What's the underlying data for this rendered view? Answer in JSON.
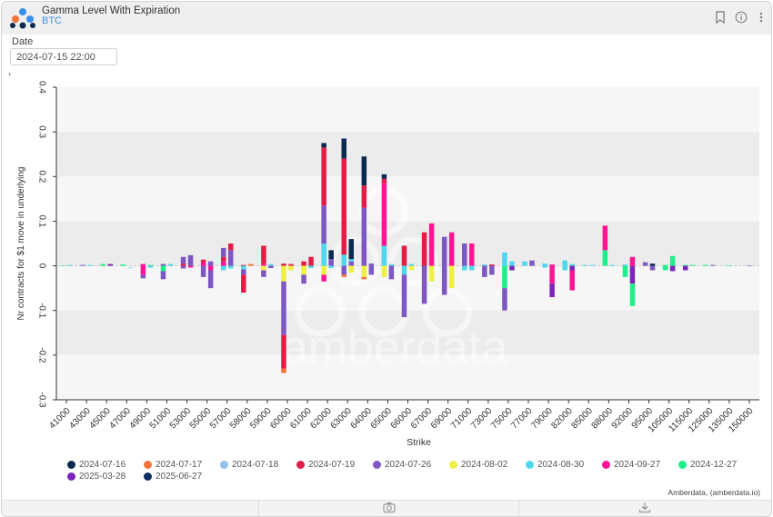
{
  "header": {
    "title": "Gamma Level With Expiration",
    "subtitle": "BTC",
    "icons": [
      "bookmark-icon",
      "info-icon",
      "more-vertical-icon"
    ]
  },
  "filters": {
    "date_label": "Date",
    "date_value": "2024-07-15 22:00"
  },
  "watermark": "amberdata",
  "credit": "Amberdata, (amberdata.io)",
  "footer": {
    "icons": [
      "camera-icon",
      "download-icon"
    ]
  },
  "colors": {
    "2024-07-16": "#0b2a4f",
    "2024-07-17": "#f4733a",
    "2024-07-18": "#8fc2ee",
    "2024-07-19": "#e11d48",
    "2024-07-26": "#7e57c2",
    "2024-08-02": "#eef042",
    "2024-08-30": "#4fd7ee",
    "2024-09-27": "#ff1493",
    "2024-12-27": "#1df08a",
    "2025-03-28": "#7b25b8",
    "2025-06-27": "#0a2e63"
  },
  "chart_data": {
    "type": "bar",
    "stacked": true,
    "xlabel": "Strike",
    "ylabel": "Nr contracts for $1 move in underlying",
    "ylim": [
      -0.3,
      0.4
    ],
    "yticks": [
      0.4,
      0.3,
      0.2,
      0.1,
      0,
      -0.1,
      -0.2,
      -0.3
    ],
    "ytick_labels": [
      "0.4",
      "0.3",
      "0.2",
      "0.1",
      "0",
      "-0.1",
      "-0.2",
      "-0.3"
    ],
    "grid": true,
    "legend_position": "bottom",
    "categories": [
      "41000",
      "43000",
      "45000",
      "47000",
      "49000",
      "51000",
      "53000",
      "55000",
      "57000",
      "58000",
      "59000",
      "60000",
      "61000",
      "62000",
      "63000",
      "64000",
      "65000",
      "66000",
      "67000",
      "69000",
      "71000",
      "73000",
      "75000",
      "77000",
      "79000",
      "82000",
      "85000",
      "88000",
      "92000",
      "95000",
      "105000",
      "115000",
      "125000",
      "135000",
      "150000"
    ],
    "series_names": [
      "2024-07-16",
      "2024-07-17",
      "2024-07-18",
      "2024-07-19",
      "2024-07-26",
      "2024-08-02",
      "2024-08-30",
      "2024-09-27",
      "2024-12-27",
      "2025-03-28",
      "2025-06-27"
    ],
    "bars": [
      {
        "x": "41000",
        "seg": [
          [
            "2024-12-27",
            0.001
          ]
        ]
      },
      {
        "x": "41000",
        "seg": [
          [
            "2024-08-30",
            0.002
          ]
        ]
      },
      {
        "x": "43000",
        "seg": [
          [
            "2024-07-26",
            0.002
          ]
        ]
      },
      {
        "x": "43000",
        "seg": [
          [
            "2024-08-30",
            0.002
          ]
        ]
      },
      {
        "x": "45000",
        "seg": [
          [
            "2024-12-27",
            0.004
          ]
        ]
      },
      {
        "x": "45000",
        "seg": [
          [
            "2025-03-28",
            0.004
          ]
        ]
      },
      {
        "x": "47000",
        "seg": [
          [
            "2024-12-27",
            0.003
          ]
        ]
      },
      {
        "x": "47000",
        "seg": [
          [
            "2024-08-30",
            -0.004
          ]
        ]
      },
      {
        "x": "49000",
        "seg": [
          [
            "2024-09-27",
            0.004
          ]
        ],
        "neg": [
          [
            "2024-09-27",
            -0.02
          ],
          [
            "2024-07-26",
            -0.008
          ]
        ]
      },
      {
        "x": "49000",
        "seg": [
          [
            "2024-12-27",
            0.002
          ]
        ],
        "neg": [
          [
            "2024-08-30",
            -0.004
          ]
        ]
      },
      {
        "x": "51000",
        "seg": [
          [
            "2024-07-26",
            0.004
          ]
        ],
        "neg": [
          [
            "2024-12-27",
            -0.012
          ],
          [
            "2024-07-26",
            -0.018
          ]
        ]
      },
      {
        "x": "51000",
        "seg": [
          [
            "2024-08-30",
            0.004
          ]
        ]
      },
      {
        "x": "53000",
        "seg": [
          [
            "2024-07-19",
            0.005
          ],
          [
            "2024-07-26",
            0.015
          ]
        ],
        "neg": [
          [
            "2024-07-26",
            -0.006
          ]
        ]
      },
      {
        "x": "53000",
        "seg": [
          [
            "2024-07-26",
            0.024
          ]
        ],
        "neg": [
          [
            "2024-09-27",
            -0.004
          ]
        ]
      },
      {
        "x": "55000",
        "seg": [
          [
            "2024-09-27",
            0.008
          ],
          [
            "2024-07-19",
            0.006
          ]
        ],
        "neg": [
          [
            "2024-07-26",
            -0.025
          ]
        ]
      },
      {
        "x": "55000",
        "seg": [
          [
            "2024-07-26",
            0.01
          ]
        ],
        "neg": [
          [
            "2024-09-27",
            -0.01
          ],
          [
            "2024-07-26",
            -0.04
          ]
        ]
      },
      {
        "x": "57000",
        "seg": [
          [
            "2024-09-27",
            0.01
          ],
          [
            "2024-07-19",
            0.01
          ],
          [
            "2024-07-26",
            0.02
          ]
        ],
        "neg": [
          [
            "2024-08-30",
            -0.01
          ]
        ]
      },
      {
        "x": "57000",
        "seg": [
          [
            "2024-07-26",
            0.035
          ],
          [
            "2024-07-19",
            0.015
          ]
        ],
        "neg": [
          [
            "2024-08-30",
            -0.006
          ]
        ]
      },
      {
        "x": "58000",
        "seg": [
          [
            "2024-07-19",
            0.002
          ]
        ],
        "neg": [
          [
            "2024-08-30",
            -0.008
          ],
          [
            "2024-07-26",
            -0.012
          ],
          [
            "2024-07-19",
            -0.04
          ]
        ]
      },
      {
        "x": "58000",
        "seg": [
          [
            "2024-07-17",
            0.004
          ]
        ]
      },
      {
        "x": "59000",
        "seg": [
          [
            "2024-09-27",
            0.005
          ],
          [
            "2024-07-19",
            0.04
          ]
        ],
        "neg": [
          [
            "2024-08-02",
            -0.01
          ],
          [
            "2024-07-26",
            -0.015
          ]
        ]
      },
      {
        "x": "59000",
        "seg": [
          [
            "2024-08-30",
            0.004
          ]
        ],
        "neg": [
          [
            "2024-07-26",
            -0.005
          ]
        ]
      },
      {
        "x": "60000",
        "seg": [
          [
            "2024-07-19",
            0.005
          ]
        ],
        "neg": [
          [
            "2024-08-02",
            -0.035
          ],
          [
            "2024-07-26",
            -0.12
          ],
          [
            "2024-07-19",
            -0.075
          ],
          [
            "2024-07-17",
            -0.01
          ]
        ]
      },
      {
        "x": "60000",
        "seg": [
          [
            "2024-07-19",
            0.004
          ]
        ],
        "neg": [
          [
            "2024-08-02",
            -0.01
          ]
        ]
      },
      {
        "x": "61000",
        "seg": [
          [
            "2024-07-19",
            0.01
          ]
        ],
        "neg": [
          [
            "2024-08-02",
            -0.02
          ],
          [
            "2024-07-26",
            -0.02
          ]
        ]
      },
      {
        "x": "61000",
        "seg": [
          [
            "2024-07-19",
            0.02
          ]
        ],
        "neg": [
          [
            "2024-08-30",
            -0.005
          ]
        ]
      },
      {
        "x": "62000",
        "seg": [
          [
            "2024-08-30",
            0.05
          ],
          [
            "2024-07-26",
            0.085
          ],
          [
            "2024-07-19",
            0.13
          ],
          [
            "2024-07-16",
            0.01
          ]
        ],
        "neg": [
          [
            "2024-08-02",
            -0.02
          ],
          [
            "2024-09-27",
            -0.015
          ]
        ]
      },
      {
        "x": "62000",
        "seg": [
          [
            "2024-07-26",
            0.015
          ],
          [
            "2024-07-16",
            0.02
          ]
        ],
        "neg": [
          [
            "2024-08-30",
            -0.005
          ]
        ]
      },
      {
        "x": "63000",
        "seg": [
          [
            "2024-08-30",
            0.025
          ],
          [
            "2024-07-19",
            0.215
          ],
          [
            "2024-07-16",
            0.045
          ]
        ],
        "neg": [
          [
            "2024-07-26",
            -0.02
          ],
          [
            "2024-07-17",
            -0.005
          ]
        ]
      },
      {
        "x": "63000",
        "seg": [
          [
            "2024-07-26",
            0.01
          ],
          [
            "2024-08-30",
            0.005
          ],
          [
            "2024-07-16",
            0.045
          ]
        ],
        "neg": [
          [
            "2024-08-02",
            -0.015
          ]
        ]
      },
      {
        "x": "64000",
        "seg": [
          [
            "2024-07-26",
            0.13
          ],
          [
            "2024-07-19",
            0.05
          ],
          [
            "2024-07-16",
            0.065
          ]
        ],
        "neg": [
          [
            "2024-08-02",
            -0.025
          ],
          [
            "2024-07-17",
            -0.005
          ]
        ]
      },
      {
        "x": "64000",
        "seg": [
          [
            "2024-07-26",
            0.005
          ]
        ],
        "neg": [
          [
            "2024-07-26",
            -0.02
          ]
        ]
      },
      {
        "x": "65000",
        "seg": [
          [
            "2024-08-30",
            0.045
          ],
          [
            "2024-09-27",
            0.14
          ],
          [
            "2024-07-19",
            0.01
          ],
          [
            "2024-07-16",
            0.01
          ]
        ],
        "neg": [
          [
            "2024-08-02",
            -0.025
          ]
        ]
      },
      {
        "x": "65000",
        "seg": [
          [
            "2024-08-30",
            0.004
          ]
        ],
        "neg": [
          [
            "2024-07-26",
            -0.03
          ]
        ]
      },
      {
        "x": "66000",
        "seg": [
          [
            "2024-07-19",
            0.045
          ]
        ],
        "neg": [
          [
            "2024-08-30",
            -0.02
          ],
          [
            "2024-07-26",
            -0.095
          ]
        ]
      },
      {
        "x": "66000",
        "seg": [
          [
            "2024-08-30",
            0.004
          ]
        ],
        "neg": [
          [
            "2024-08-02",
            -0.01
          ]
        ]
      },
      {
        "x": "67000",
        "seg": [
          [
            "2024-07-19",
            0.075
          ]
        ],
        "neg": [
          [
            "2024-07-26",
            -0.085
          ]
        ]
      },
      {
        "x": "67000",
        "seg": [
          [
            "2024-09-27",
            0.095
          ]
        ],
        "neg": [
          [
            "2024-08-02",
            -0.035
          ]
        ]
      },
      {
        "x": "69000",
        "seg": [
          [
            "2024-07-26",
            0.065
          ]
        ],
        "neg": [
          [
            "2024-07-26",
            -0.065
          ]
        ]
      },
      {
        "x": "69000",
        "seg": [
          [
            "2024-09-27",
            0.075
          ]
        ],
        "neg": [
          [
            "2024-08-02",
            -0.05
          ]
        ]
      },
      {
        "x": "71000",
        "seg": [
          [
            "2024-07-26",
            0.05
          ]
        ],
        "neg": [
          [
            "2024-08-30",
            -0.01
          ]
        ]
      },
      {
        "x": "71000",
        "seg": [
          [
            "2024-09-27",
            0.05
          ]
        ],
        "neg": [
          [
            "2024-08-30",
            -0.01
          ]
        ]
      },
      {
        "x": "73000",
        "seg": [
          [
            "2024-08-30",
            0.003
          ]
        ],
        "neg": [
          [
            "2024-07-26",
            -0.025
          ]
        ]
      },
      {
        "x": "73000",
        "seg": [
          [
            "2024-07-19",
            0.003
          ]
        ],
        "neg": [
          [
            "2024-07-26",
            -0.02
          ]
        ]
      },
      {
        "x": "75000",
        "seg": [
          [
            "2024-08-30",
            0.03
          ]
        ],
        "neg": [
          [
            "2024-12-27",
            -0.05
          ],
          [
            "2024-07-26",
            -0.05
          ]
        ]
      },
      {
        "x": "75000",
        "seg": [
          [
            "2024-08-30",
            0.01
          ]
        ],
        "neg": [
          [
            "2025-03-28",
            -0.01
          ]
        ]
      },
      {
        "x": "77000",
        "seg": [
          [
            "2024-08-30",
            0.01
          ]
        ]
      },
      {
        "x": "77000",
        "seg": [
          [
            "2024-07-26",
            0.012
          ]
        ]
      },
      {
        "x": "79000",
        "seg": [
          [
            "2024-08-30",
            0.005
          ]
        ],
        "neg": [
          [
            "2024-08-30",
            -0.004
          ]
        ]
      },
      {
        "x": "79000",
        "seg": [
          [
            "2024-09-27",
            0.003
          ]
        ],
        "neg": [
          [
            "2024-09-27",
            -0.04
          ],
          [
            "2025-03-28",
            -0.03
          ]
        ]
      },
      {
        "x": "82000",
        "seg": [
          [
            "2024-08-30",
            0.012
          ]
        ],
        "neg": [
          [
            "2024-08-30",
            -0.01
          ]
        ]
      },
      {
        "x": "82000",
        "seg": [
          [
            "2024-08-30",
            0.004
          ]
        ],
        "neg": [
          [
            "2025-03-28",
            -0.01
          ],
          [
            "2024-09-27",
            -0.045
          ]
        ]
      },
      {
        "x": "85000",
        "seg": [
          [
            "2024-08-30",
            0.002
          ]
        ]
      },
      {
        "x": "85000",
        "seg": [
          [
            "2024-08-30",
            0.002
          ]
        ]
      },
      {
        "x": "88000",
        "seg": [
          [
            "2024-12-27",
            0.035
          ],
          [
            "2024-09-27",
            0.055
          ]
        ]
      },
      {
        "x": "88000",
        "seg": [
          [
            "2024-08-30",
            0.002
          ]
        ]
      },
      {
        "x": "92000",
        "seg": [
          [
            "2024-08-30",
            0.003
          ]
        ],
        "neg": [
          [
            "2024-12-27",
            -0.025
          ]
        ]
      },
      {
        "x": "92000",
        "seg": [
          [
            "2024-09-27",
            0.02
          ]
        ],
        "neg": [
          [
            "2025-03-28",
            -0.04
          ],
          [
            "2024-12-27",
            -0.05
          ]
        ]
      },
      {
        "x": "95000",
        "seg": [
          [
            "2024-07-26",
            0.008
          ]
        ]
      },
      {
        "x": "95000",
        "seg": [
          [
            "2024-07-16",
            0.005
          ]
        ],
        "neg": [
          [
            "2024-07-26",
            -0.01
          ]
        ]
      },
      {
        "x": "105000",
        "seg": [
          [
            "2024-12-27",
            0.002
          ]
        ],
        "neg": [
          [
            "2024-12-27",
            -0.01
          ]
        ]
      },
      {
        "x": "105000",
        "seg": [
          [
            "2024-12-27",
            0.022
          ]
        ],
        "neg": [
          [
            "2025-03-28",
            -0.012
          ]
        ]
      },
      {
        "x": "115000",
        "seg": [
          [
            "2024-12-27",
            0.002
          ]
        ],
        "neg": [
          [
            "2025-03-28",
            -0.01
          ]
        ]
      },
      {
        "x": "115000",
        "seg": [
          [
            "2024-12-27",
            0.002
          ]
        ]
      },
      {
        "x": "125000",
        "seg": [
          [
            "2024-12-27",
            0.002
          ]
        ]
      },
      {
        "x": "125000",
        "seg": [
          [
            "2024-07-26",
            0.002
          ]
        ]
      },
      {
        "x": "135000",
        "seg": [
          [
            "2024-12-27",
            0.001
          ]
        ]
      },
      {
        "x": "150000",
        "seg": [
          [
            "2024-07-26",
            0.001
          ]
        ]
      }
    ]
  },
  "legend": [
    {
      "label": "2024-07-16"
    },
    {
      "label": "2024-07-17"
    },
    {
      "label": "2024-07-18"
    },
    {
      "label": "2024-07-19"
    },
    {
      "label": "2024-07-26"
    },
    {
      "label": "2024-08-02"
    },
    {
      "label": "2024-08-30"
    },
    {
      "label": "2024-09-27"
    },
    {
      "label": "2024-12-27"
    },
    {
      "label": "2025-03-28"
    },
    {
      "label": "2025-06-27"
    }
  ]
}
